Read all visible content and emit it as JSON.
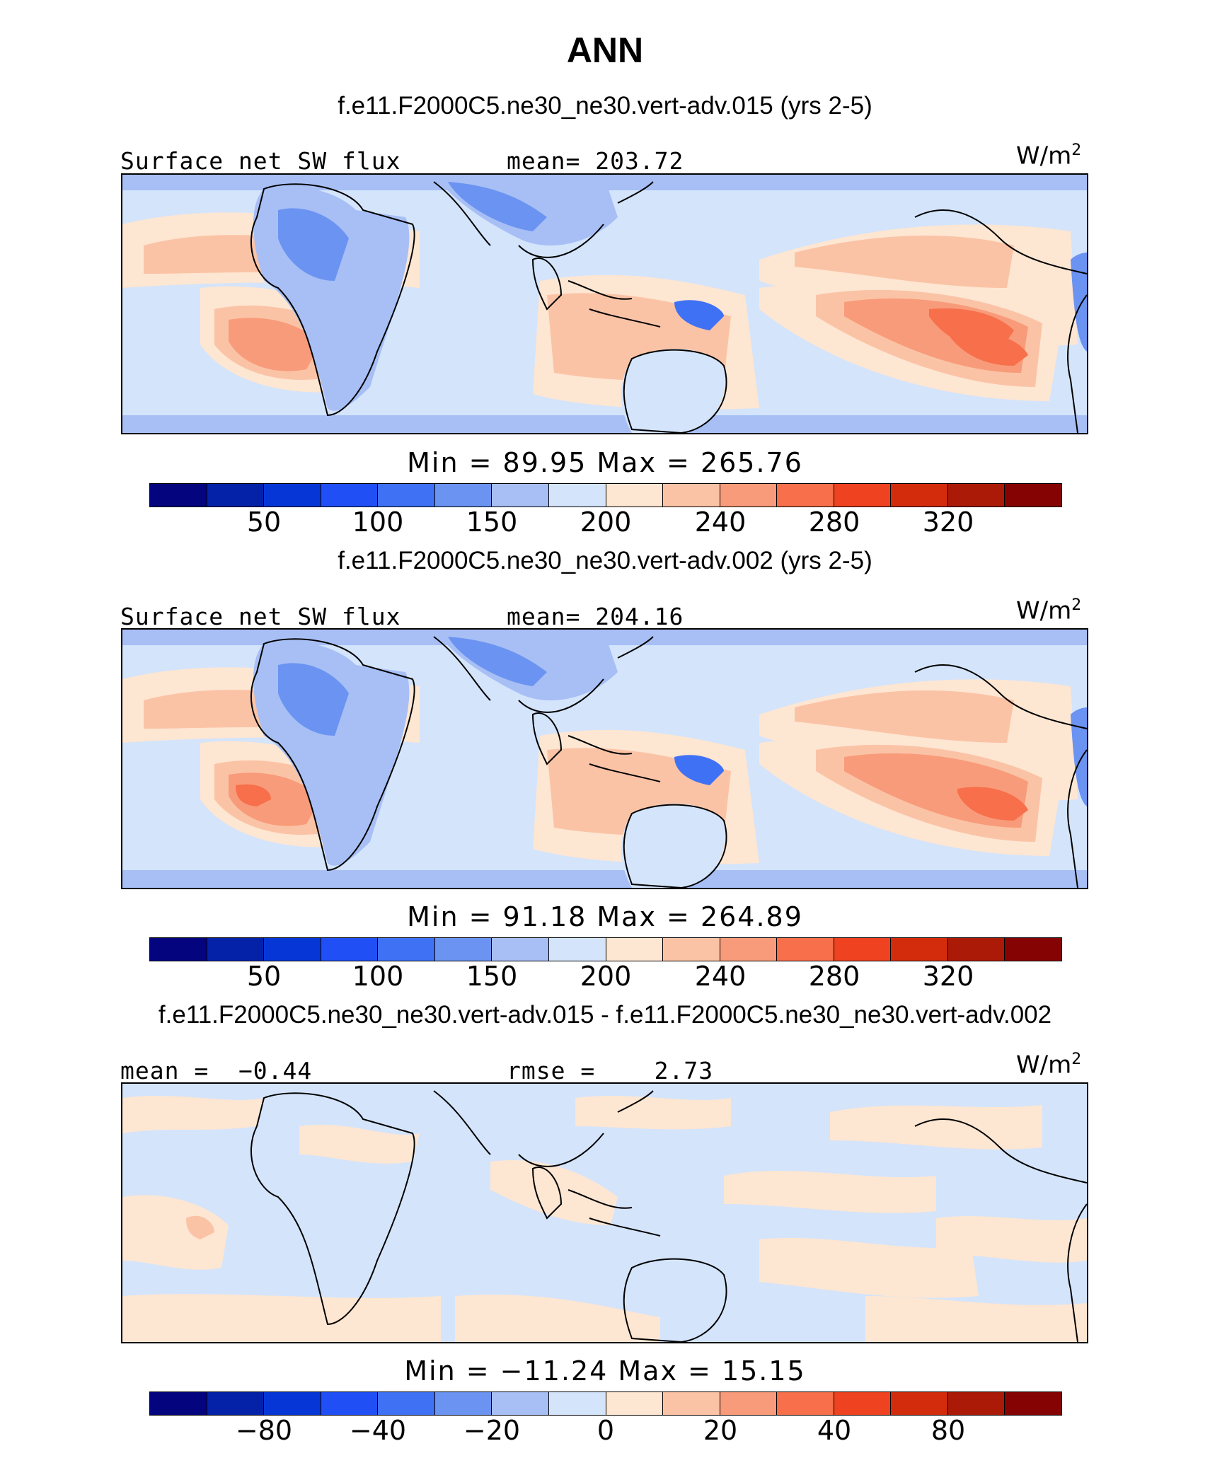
{
  "title": "ANN",
  "colors": [
    "#04057e",
    "#0422a8",
    "#0637d6",
    "#1f4ff5",
    "#3f71f4",
    "#6b93f1",
    "#a7bff5",
    "#d4e4fb",
    "#fde6d2",
    "#fbc3a6",
    "#f89b7a",
    "#f76f4b",
    "#ee4220",
    "#d32c0c",
    "#ab1a06",
    "#850302"
  ],
  "panels": [
    {
      "case": "f.e11.F2000C5.ne30_ne30.vert-adv.015 (yrs 2-5)",
      "left_label": "Surface net SW flux",
      "center_label": "mean= 203.72",
      "units": "W/m",
      "units_sup": "2",
      "minmax": "Min =   89.95  Max =  265.76",
      "ticks": [
        "50",
        "100",
        "150",
        "200",
        "240",
        "280",
        "320"
      ]
    },
    {
      "case": "f.e11.F2000C5.ne30_ne30.vert-adv.002 (yrs 2-5)",
      "left_label": "Surface net SW flux",
      "center_label": "mean= 204.16",
      "units": "W/m",
      "units_sup": "2",
      "minmax": "Min =   91.18  Max =  264.89",
      "ticks": [
        "50",
        "100",
        "150",
        "200",
        "240",
        "280",
        "320"
      ]
    },
    {
      "case": "f.e11.F2000C5.ne30_ne30.vert-adv.015 - f.e11.F2000C5.ne30_ne30.vert-adv.002",
      "left_label": "mean =  −0.44",
      "center_label": "rmse =    2.73",
      "units": "W/m",
      "units_sup": "2",
      "minmax": "Min = −11.24  Max =   15.15",
      "ticks": [
        "−80",
        "−40",
        "−20",
        "0",
        "20",
        "40",
        "80"
      ]
    }
  ]
}
